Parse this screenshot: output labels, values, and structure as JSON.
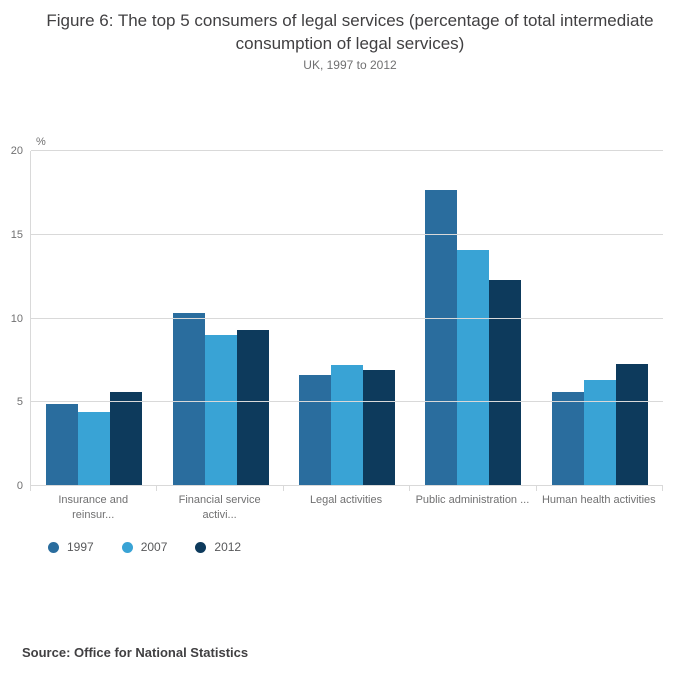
{
  "title": "Figure 6: The top 5 consumers of legal services (percentage of total intermediate consumption of legal services)",
  "subtitle": "UK, 1997 to 2012",
  "unit_label": "%",
  "source": "Source: Office for National Statistics",
  "colors": {
    "series_1997": "#2a6d9e",
    "series_2007": "#39a3d5",
    "series_2012": "#0d3a5c",
    "gridline": "#d9d9d9",
    "text_dark": "#414042",
    "text_muted": "#707071"
  },
  "chart_data": {
    "type": "bar",
    "title": "Figure 6: The top 5 consumers of legal services (percentage of total intermediate consumption of legal services)",
    "subtitle": "UK, 1997 to 2012",
    "ylabel": "%",
    "xlabel": "",
    "categories": [
      "Insurance and reinsur...",
      "Financial service activi...",
      "Legal activities",
      "Public administration ...",
      "Human health activities"
    ],
    "series": [
      {
        "name": "1997",
        "color": "#2a6d9e",
        "values": [
          4.9,
          10.3,
          6.6,
          17.7,
          5.6
        ]
      },
      {
        "name": "2007",
        "color": "#39a3d5",
        "values": [
          4.4,
          9.0,
          7.2,
          14.1,
          6.3
        ]
      },
      {
        "name": "2012",
        "color": "#0d3a5c",
        "values": [
          5.6,
          9.3,
          6.9,
          12.3,
          7.3
        ]
      }
    ],
    "ylim": [
      0,
      20
    ],
    "yticks": [
      0,
      5,
      10,
      15,
      20
    ],
    "grid": true,
    "legend_position": "bottom"
  }
}
